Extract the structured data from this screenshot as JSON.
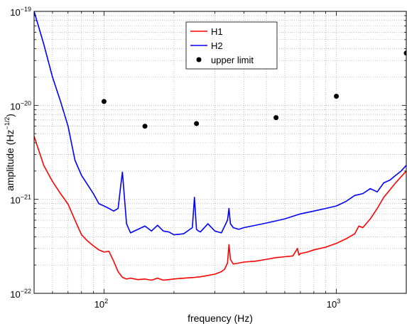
{
  "chart_data": {
    "type": "line",
    "xscale": "log",
    "yscale": "log",
    "xlim": [
      50,
      2000
    ],
    "ylim": [
      1e-22,
      1e-19
    ],
    "grid": true,
    "legend_position": "top-center",
    "xlabel": "frequency (Hz)",
    "ylabel": {
      "base": "amplitude (Hz",
      "sup": "−1/2",
      "end": ")"
    },
    "x_ticks": [
      {
        "value": 100,
        "base": "10",
        "exp": "2"
      },
      {
        "value": 1000,
        "base": "10",
        "exp": "3"
      }
    ],
    "y_ticks": [
      {
        "value": 1e-22,
        "base": "10",
        "exp": "−22"
      },
      {
        "value": 1e-21,
        "base": "10",
        "exp": "−21"
      },
      {
        "value": 1e-20,
        "base": "10",
        "exp": "−20"
      },
      {
        "value": 1e-19,
        "base": "10",
        "exp": "−19"
      }
    ],
    "series": [
      {
        "name": "H1",
        "style": "line",
        "color": "#ff0000",
        "x": [
          50,
          55,
          60,
          65,
          70,
          75,
          80,
          85,
          90,
          95,
          100,
          105,
          110,
          115,
          120,
          125,
          130,
          140,
          150,
          160,
          170,
          180,
          190,
          200,
          220,
          240,
          260,
          280,
          300,
          320,
          330,
          340,
          345,
          350,
          360,
          380,
          400,
          450,
          500,
          550,
          600,
          650,
          680,
          690,
          700,
          750,
          800,
          900,
          1000,
          1100,
          1200,
          1250,
          1300,
          1400,
          1500,
          1600,
          1800,
          2000
        ],
        "y": [
          4.7e-21,
          2.3e-21,
          1.55e-21,
          1.15e-21,
          8.9e-22,
          6e-22,
          4.2e-22,
          3.6e-22,
          3.2e-22,
          2.9e-22,
          2.75e-22,
          2.8e-22,
          2.2e-22,
          1.7e-22,
          1.48e-22,
          1.42e-22,
          1.45e-22,
          1.4e-22,
          1.42e-22,
          1.38e-22,
          1.45e-22,
          1.38e-22,
          1.4e-22,
          1.42e-22,
          1.45e-22,
          1.47e-22,
          1.5e-22,
          1.55e-22,
          1.6e-22,
          1.7e-22,
          1.8e-22,
          2.1e-22,
          3.3e-22,
          2.3e-22,
          2.05e-22,
          2.1e-22,
          2.15e-22,
          2.2e-22,
          2.3e-22,
          2.4e-22,
          2.45e-22,
          2.5e-22,
          3e-22,
          2.55e-22,
          2.65e-22,
          2.75e-22,
          2.9e-22,
          3.1e-22,
          3.4e-22,
          3.8e-22,
          4.3e-22,
          5.2e-22,
          5e-22,
          6.2e-22,
          8e-22,
          1.05e-21,
          1.5e-21,
          2e-21
        ]
      },
      {
        "name": "H2",
        "style": "line",
        "color": "#0000ff",
        "x": [
          50,
          55,
          60,
          65,
          70,
          75,
          80,
          90,
          95,
          100,
          105,
          110,
          115,
          118,
          120,
          123,
          125,
          130,
          140,
          150,
          160,
          170,
          180,
          190,
          200,
          220,
          240,
          245,
          250,
          255,
          260,
          280,
          300,
          320,
          340,
          345,
          350,
          360,
          380,
          400,
          450,
          500,
          550,
          600,
          700,
          800,
          900,
          1000,
          1100,
          1200,
          1300,
          1400,
          1500,
          1600,
          1700,
          1800,
          1900,
          2000
        ],
        "y": [
          1e-19,
          4.5e-20,
          2e-20,
          1.1e-20,
          6e-21,
          2.6e-21,
          1.8e-21,
          1.15e-21,
          9e-22,
          8.5e-22,
          8e-22,
          7.5e-22,
          8e-22,
          1.4e-21,
          1.95e-21,
          9e-22,
          5.5e-22,
          4.4e-22,
          4.8e-22,
          5.2e-22,
          4.6e-22,
          5.3e-22,
          4.6e-22,
          4.5e-22,
          4.2e-22,
          4.3e-22,
          5e-22,
          1.05e-21,
          4.8e-22,
          4.6e-22,
          4.5e-22,
          5.5e-22,
          4.6e-22,
          4.4e-22,
          6e-22,
          8e-22,
          5.5e-22,
          5e-22,
          4.8e-22,
          5e-22,
          5.3e-22,
          5.6e-22,
          5.9e-22,
          6.2e-22,
          7e-22,
          7.5e-22,
          8e-22,
          8.5e-22,
          9.5e-22,
          1.1e-21,
          1.15e-21,
          1.3e-21,
          1.2e-21,
          1.5e-21,
          1.6e-21,
          1.8e-21,
          2e-21,
          2.3e-21
        ]
      },
      {
        "name": "upper limit",
        "style": "markers",
        "color": "#000000",
        "x": [
          100,
          150,
          250,
          550,
          1000,
          2000
        ],
        "y": [
          1.1e-20,
          6e-21,
          6.4e-21,
          7.4e-21,
          1.25e-20,
          3.6e-20
        ]
      }
    ]
  }
}
